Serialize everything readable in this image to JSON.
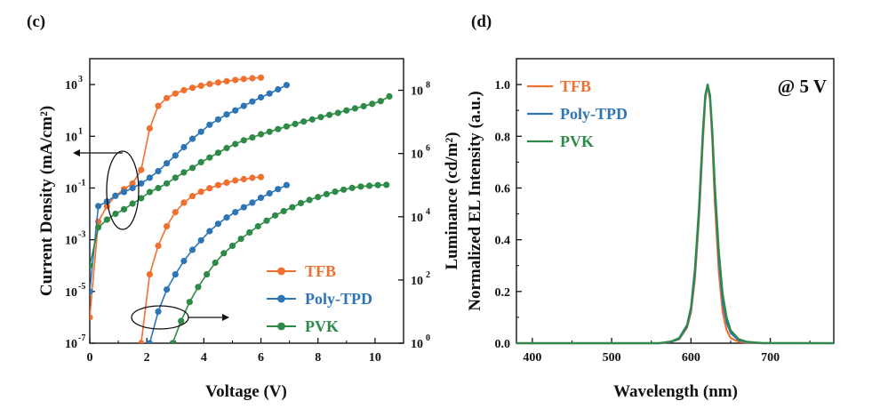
{
  "chart_data": [
    {
      "type": "line",
      "panel_label": "(c)",
      "xlabel": "Voltage (V)",
      "ylabel": "Current Density (mA/cm²)",
      "y2label": "Luminance (cd/m²)",
      "xlim": [
        0,
        11
      ],
      "ylim": [
        1e-07,
        10000
      ],
      "y2lim": [
        1,
        1000000000
      ],
      "yscale": "log",
      "y2scale": "log",
      "x_ticks": [
        "0",
        "2",
        "4",
        "6",
        "8",
        "10"
      ],
      "y_ticks": [
        "10",
        "10",
        "10",
        "10",
        "10",
        "10"
      ],
      "y_tick_exps": [
        "-7",
        "-5",
        "-3",
        "-1",
        "1",
        "3"
      ],
      "y2_ticks": [
        "10",
        "10",
        "10",
        "10",
        "10"
      ],
      "y2_tick_exps": [
        "0",
        "2",
        "4",
        "6",
        "8"
      ],
      "legend": {
        "position": "bottom-right",
        "entries": [
          "TFB",
          "Poly-TPD",
          "PVK"
        ]
      },
      "series": [
        {
          "name": "TFB",
          "color": "#f07030",
          "axis": "left",
          "x": [
            0,
            0.3,
            0.6,
            0.9,
            1.2,
            1.5,
            1.8,
            2.1,
            2.4,
            2.7,
            3.0,
            3.3,
            3.6,
            3.9,
            4.2,
            4.5,
            4.8,
            5.1,
            5.4,
            5.7,
            6.0
          ],
          "y": [
            1e-06,
            0.005,
            0.02,
            0.05,
            0.09,
            0.15,
            0.5,
            20,
            150,
            300,
            450,
            600,
            750,
            900,
            1050,
            1200,
            1350,
            1500,
            1650,
            1750,
            1850
          ]
        },
        {
          "name": "Poly-TPD",
          "color": "#2e75b6",
          "axis": "left",
          "x": [
            0,
            0.3,
            0.6,
            0.9,
            1.2,
            1.5,
            1.8,
            2.1,
            2.4,
            2.7,
            3.0,
            3.3,
            3.6,
            3.9,
            4.2,
            4.5,
            4.8,
            5.1,
            5.4,
            5.7,
            6.0,
            6.3,
            6.6,
            6.9
          ],
          "y": [
            1e-05,
            0.02,
            0.03,
            0.05,
            0.07,
            0.1,
            0.15,
            0.25,
            0.45,
            0.9,
            1.8,
            3.8,
            8,
            15,
            28,
            45,
            70,
            100,
            150,
            220,
            320,
            450,
            650,
            950
          ]
        },
        {
          "name": "PVK",
          "color": "#2e8b47",
          "axis": "left",
          "x": [
            0,
            0.3,
            0.6,
            0.9,
            1.2,
            1.5,
            1.8,
            2.1,
            2.4,
            2.7,
            3.0,
            3.3,
            3.6,
            3.9,
            4.2,
            4.5,
            4.8,
            5.1,
            5.4,
            5.7,
            6.0,
            6.3,
            6.6,
            6.9,
            7.2,
            7.5,
            7.8,
            8.1,
            8.4,
            8.7,
            9.0,
            9.3,
            9.6,
            9.9,
            10.2,
            10.5
          ],
          "y": [
            0.0001,
            0.003,
            0.006,
            0.01,
            0.015,
            0.025,
            0.04,
            0.07,
            0.1,
            0.15,
            0.25,
            0.4,
            0.6,
            1,
            1.5,
            2.3,
            3.5,
            5,
            7,
            9,
            12,
            15,
            19,
            24,
            30,
            37,
            45,
            55,
            67,
            80,
            100,
            120,
            145,
            180,
            230,
            350
          ]
        },
        {
          "name": "TFB",
          "color": "#f07030",
          "axis": "right",
          "x": [
            1.8,
            2.1,
            2.4,
            2.7,
            3.0,
            3.3,
            3.6,
            3.9,
            4.2,
            4.5,
            4.8,
            5.1,
            5.4,
            5.7,
            6.0
          ],
          "y": [
            1,
            150,
            1200,
            5000,
            14000,
            28000,
            45000,
            62000,
            80000,
            100000,
            120000,
            140000,
            155000,
            170000,
            180000
          ]
        },
        {
          "name": "Poly-TPD",
          "color": "#2e75b6",
          "axis": "right",
          "x": [
            2.1,
            2.4,
            2.7,
            3.0,
            3.3,
            3.6,
            3.9,
            4.2,
            4.5,
            4.8,
            5.1,
            5.4,
            5.7,
            6.0,
            6.3,
            6.6,
            6.9
          ],
          "y": [
            1,
            10,
            50,
            150,
            400,
            900,
            1800,
            3500,
            6000,
            9500,
            14000,
            20000,
            28000,
            40000,
            55000,
            75000,
            100000
          ]
        },
        {
          "name": "PVK",
          "color": "#2e8b47",
          "axis": "right",
          "x": [
            2.9,
            3.2,
            3.5,
            3.8,
            4.1,
            4.4,
            4.7,
            5.0,
            5.3,
            5.6,
            5.9,
            6.2,
            6.5,
            6.8,
            7.1,
            7.4,
            7.7,
            8.0,
            8.3,
            8.6,
            8.9,
            9.2,
            9.5,
            9.8,
            10.1,
            10.4
          ],
          "y": [
            1,
            5,
            20,
            60,
            150,
            350,
            700,
            1200,
            2000,
            3200,
            5000,
            7500,
            11000,
            15000,
            20000,
            27000,
            34000,
            42000,
            52000,
            62000,
            72000,
            82000,
            90000,
            96000,
            100000,
            102000
          ]
        }
      ]
    },
    {
      "type": "line",
      "panel_label": "(d)",
      "xlabel": "Wavelength (nm)",
      "ylabel": "Normalized EL Intensity (a.u.)",
      "annotation": "@ 5 V",
      "xlim": [
        380,
        780
      ],
      "ylim": [
        0,
        1.1
      ],
      "x_ticks": [
        "400",
        "500",
        "600",
        "700"
      ],
      "y_ticks": [
        "0.0",
        "0.2",
        "0.4",
        "0.6",
        "0.8",
        "1.0"
      ],
      "legend": {
        "position": "top-left",
        "entries": [
          "TFB",
          "Poly-TPD",
          "PVK"
        ]
      },
      "series": [
        {
          "name": "TFB",
          "color": "#f07030",
          "x": [
            380,
            560,
            575,
            585,
            595,
            600,
            605,
            610,
            615,
            618,
            621,
            624,
            627,
            630,
            635,
            640,
            645,
            650,
            660,
            670,
            690,
            780
          ],
          "y": [
            0,
            0,
            0.005,
            0.015,
            0.06,
            0.12,
            0.25,
            0.48,
            0.78,
            0.94,
            1.0,
            0.94,
            0.78,
            0.55,
            0.28,
            0.12,
            0.05,
            0.02,
            0.006,
            0.002,
            0,
            0
          ]
        },
        {
          "name": "Poly-TPD",
          "color": "#2e75b6",
          "x": [
            380,
            560,
            575,
            585,
            595,
            600,
            605,
            610,
            615,
            618,
            621,
            624,
            627,
            630,
            635,
            640,
            645,
            650,
            660,
            670,
            690,
            780
          ],
          "y": [
            0,
            0,
            0.006,
            0.017,
            0.065,
            0.13,
            0.27,
            0.5,
            0.8,
            0.95,
            1.0,
            0.95,
            0.81,
            0.6,
            0.33,
            0.16,
            0.08,
            0.04,
            0.012,
            0.004,
            0,
            0
          ]
        },
        {
          "name": "PVK",
          "color": "#2e8b47",
          "x": [
            380,
            560,
            575,
            585,
            595,
            600,
            605,
            610,
            615,
            618,
            621,
            624,
            627,
            630,
            635,
            640,
            645,
            650,
            660,
            670,
            690,
            780
          ],
          "y": [
            0,
            0,
            0.007,
            0.02,
            0.07,
            0.14,
            0.29,
            0.52,
            0.82,
            0.96,
            1.0,
            0.96,
            0.82,
            0.62,
            0.36,
            0.19,
            0.1,
            0.05,
            0.016,
            0.006,
            0.001,
            0
          ]
        }
      ]
    }
  ]
}
